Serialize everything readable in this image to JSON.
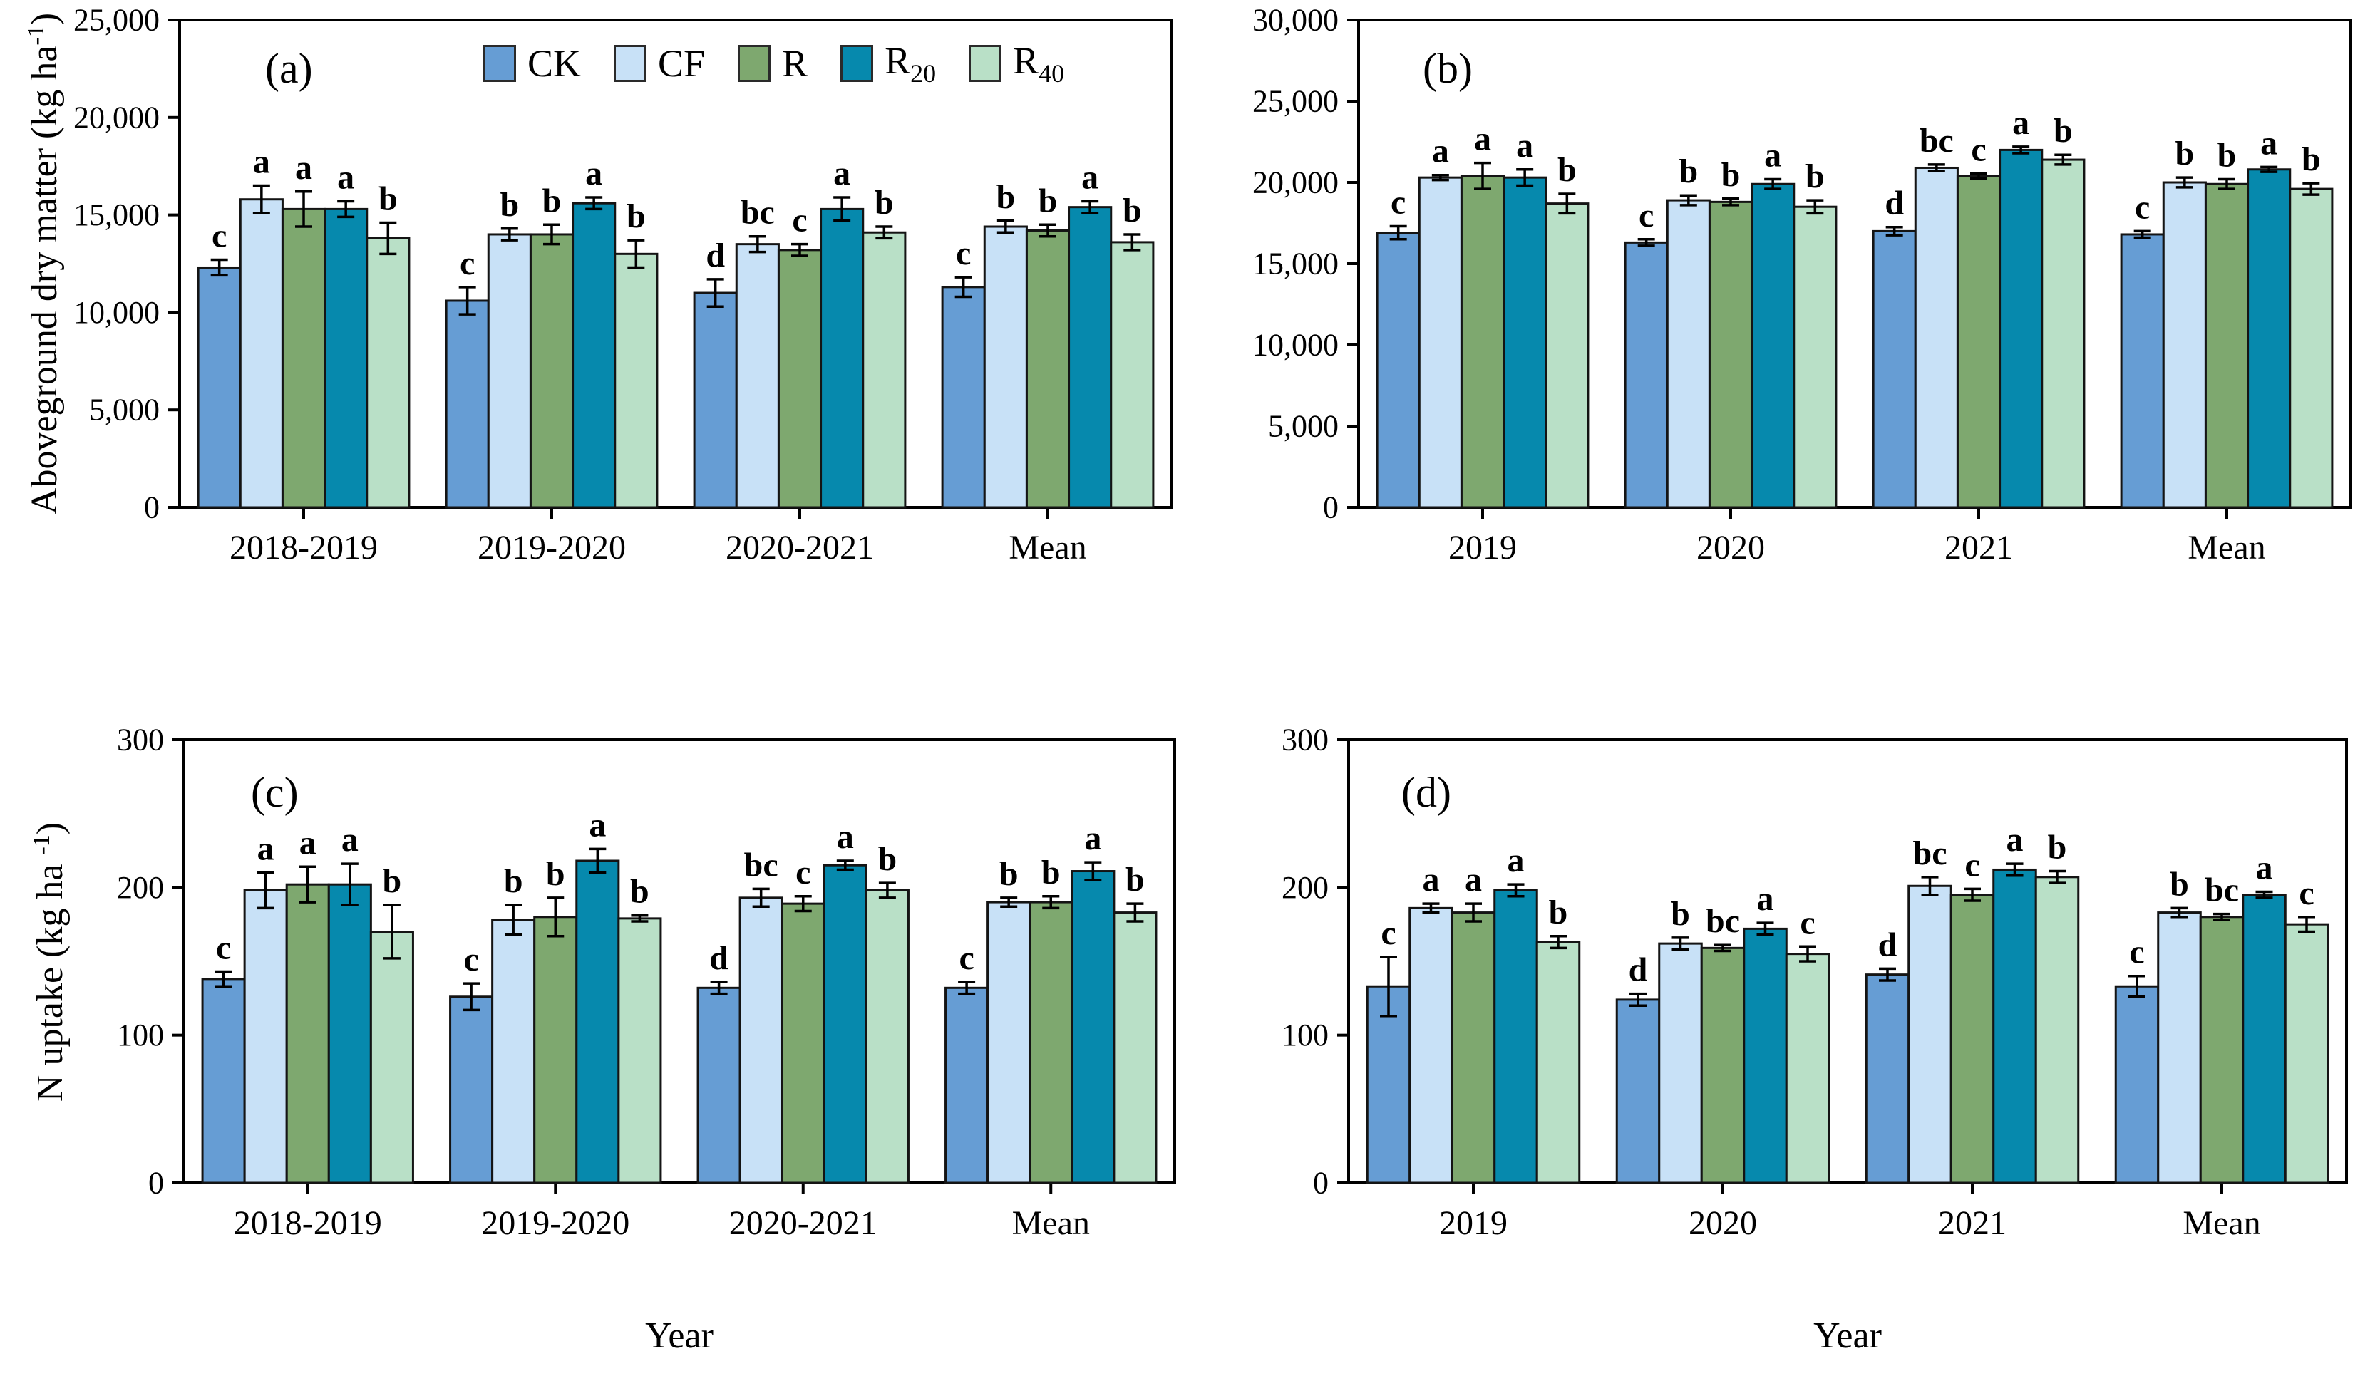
{
  "figure": {
    "legend": [
      {
        "key": "ck",
        "label_base": "CK",
        "label_sub": "",
        "color": "#669dd4"
      },
      {
        "key": "cf",
        "label_base": "CF",
        "label_sub": "",
        "color": "#c8e1f7"
      },
      {
        "key": "r",
        "label_base": "R",
        "label_sub": "",
        "color": "#7ea86f"
      },
      {
        "key": "r20",
        "label_base": "R",
        "label_sub": "20",
        "color": "#0689ad"
      },
      {
        "key": "r40",
        "label_base": "R",
        "label_sub": "40",
        "color": "#b9e0c7"
      }
    ]
  },
  "chart_data": [
    {
      "id": "a",
      "type": "bar",
      "panel_label": "(a)",
      "ylabel": "Aboveground dry matter (kg ha^-1^)",
      "xlabel": "",
      "ylim": [
        0,
        25000
      ],
      "yticks": [
        0,
        5000,
        10000,
        15000,
        20000,
        25000
      ],
      "ytick_labels": [
        "0",
        "5,000",
        "10,000",
        "15,000",
        "20,000",
        "25,000"
      ],
      "categories": [
        "2018-2019",
        "2019-2020",
        "2020-2021",
        "Mean"
      ],
      "legend_position": "top-center-of-panel",
      "grid": false,
      "series": [
        {
          "key": "ck",
          "name": "CK",
          "values": [
            12300,
            10600,
            11000,
            11300
          ],
          "errors": [
            400,
            700,
            700,
            500
          ],
          "letters": [
            "c",
            "c",
            "d",
            "c"
          ]
        },
        {
          "key": "cf",
          "name": "CF",
          "values": [
            15800,
            14000,
            13500,
            14400
          ],
          "errors": [
            700,
            300,
            400,
            300
          ],
          "letters": [
            "a",
            "b",
            "bc",
            "b"
          ]
        },
        {
          "key": "r",
          "name": "R",
          "values": [
            15300,
            14000,
            13200,
            14200
          ],
          "errors": [
            900,
            500,
            300,
            300
          ],
          "letters": [
            "a",
            "b",
            "c",
            "b"
          ]
        },
        {
          "key": "r20",
          "name": "R20",
          "values": [
            15300,
            15600,
            15300,
            15400
          ],
          "errors": [
            400,
            300,
            600,
            300
          ],
          "letters": [
            "a",
            "a",
            "a",
            "a"
          ]
        },
        {
          "key": "r40",
          "name": "R40",
          "values": [
            13800,
            13000,
            14100,
            13600
          ],
          "errors": [
            800,
            700,
            300,
            400
          ],
          "letters": [
            "b",
            "b",
            "b",
            "b"
          ]
        }
      ]
    },
    {
      "id": "b",
      "type": "bar",
      "panel_label": "(b)",
      "ylabel": "",
      "xlabel": "",
      "ylim": [
        0,
        30000
      ],
      "yticks": [
        0,
        5000,
        10000,
        15000,
        20000,
        25000,
        30000
      ],
      "ytick_labels": [
        "0",
        "5,000",
        "10,000",
        "15,000",
        "20,000",
        "25,000",
        "30,000"
      ],
      "categories": [
        "2019",
        "2020",
        "2021",
        "Mean"
      ],
      "grid": false,
      "series": [
        {
          "key": "ck",
          "name": "CK",
          "values": [
            16900,
            16300,
            17000,
            16800
          ],
          "errors": [
            400,
            200,
            250,
            200
          ],
          "letters": [
            "c",
            "c",
            "d",
            "c"
          ]
        },
        {
          "key": "cf",
          "name": "CF",
          "values": [
            20300,
            18900,
            20900,
            20000
          ],
          "errors": [
            150,
            300,
            200,
            300
          ],
          "letters": [
            "a",
            "b",
            "bc",
            "b"
          ]
        },
        {
          "key": "r",
          "name": "R",
          "values": [
            20400,
            18800,
            20400,
            19900
          ],
          "errors": [
            800,
            200,
            150,
            300
          ],
          "letters": [
            "a",
            "b",
            "c",
            "b"
          ]
        },
        {
          "key": "r20",
          "name": "R20",
          "values": [
            20300,
            19900,
            22000,
            20800
          ],
          "errors": [
            500,
            300,
            200,
            150
          ],
          "letters": [
            "a",
            "a",
            "a",
            "a"
          ]
        },
        {
          "key": "r40",
          "name": "R40",
          "values": [
            18700,
            18500,
            21400,
            19600
          ],
          "errors": [
            600,
            400,
            300,
            350
          ],
          "letters": [
            "b",
            "b",
            "b",
            "b"
          ]
        }
      ]
    },
    {
      "id": "c",
      "type": "bar",
      "panel_label": "(c)",
      "ylabel": "N uptake (kg ha ^-1^)",
      "xlabel": "Year",
      "ylim": [
        0,
        300
      ],
      "yticks": [
        0,
        100,
        200,
        300
      ],
      "ytick_labels": [
        "0",
        "100",
        "200",
        "300"
      ],
      "categories": [
        "2018-2019",
        "2019-2020",
        "2020-2021",
        "Mean"
      ],
      "grid": false,
      "series": [
        {
          "key": "ck",
          "name": "CK",
          "values": [
            138,
            126,
            132,
            132
          ],
          "errors": [
            5,
            9,
            4,
            4
          ],
          "letters": [
            "c",
            "c",
            "d",
            "c"
          ]
        },
        {
          "key": "cf",
          "name": "CF",
          "values": [
            198,
            178,
            193,
            190
          ],
          "errors": [
            12,
            10,
            6,
            3
          ],
          "letters": [
            "a",
            "b",
            "bc",
            "b"
          ]
        },
        {
          "key": "r",
          "name": "R",
          "values": [
            202,
            180,
            189,
            190
          ],
          "errors": [
            12,
            13,
            5,
            4
          ],
          "letters": [
            "a",
            "b",
            "c",
            "b"
          ]
        },
        {
          "key": "r20",
          "name": "R20",
          "values": [
            202,
            218,
            215,
            211
          ],
          "errors": [
            14,
            8,
            3,
            6
          ],
          "letters": [
            "a",
            "a",
            "a",
            "a"
          ]
        },
        {
          "key": "r40",
          "name": "R40",
          "values": [
            170,
            179,
            198,
            183
          ],
          "errors": [
            18,
            2,
            5,
            6
          ],
          "letters": [
            "b",
            "b",
            "b",
            "b"
          ]
        }
      ]
    },
    {
      "id": "d",
      "type": "bar",
      "panel_label": "(d)",
      "ylabel": "",
      "xlabel": "Year",
      "ylim": [
        0,
        300
      ],
      "yticks": [
        0,
        100,
        200,
        300
      ],
      "ytick_labels": [
        "0",
        "100",
        "200",
        "300"
      ],
      "categories": [
        "2019",
        "2020",
        "2021",
        "Mean"
      ],
      "grid": false,
      "series": [
        {
          "key": "ck",
          "name": "CK",
          "values": [
            133,
            124,
            141,
            133
          ],
          "errors": [
            20,
            4,
            4,
            7
          ],
          "letters": [
            "c",
            "d",
            "d",
            "c"
          ]
        },
        {
          "key": "cf",
          "name": "CF",
          "values": [
            186,
            162,
            201,
            183
          ],
          "errors": [
            3,
            4,
            6,
            3
          ],
          "letters": [
            "a",
            "b",
            "bc",
            "b"
          ]
        },
        {
          "key": "r",
          "name": "R",
          "values": [
            183,
            159,
            195,
            180
          ],
          "errors": [
            6,
            2,
            4,
            2
          ],
          "letters": [
            "a",
            "bc",
            "c",
            "bc"
          ]
        },
        {
          "key": "r20",
          "name": "R20",
          "values": [
            198,
            172,
            212,
            195
          ],
          "errors": [
            4,
            4,
            4,
            2
          ],
          "letters": [
            "a",
            "a",
            "a",
            "a"
          ]
        },
        {
          "key": "r40",
          "name": "R40",
          "values": [
            163,
            155,
            207,
            175
          ],
          "errors": [
            4,
            5,
            4,
            5
          ],
          "letters": [
            "b",
            "c",
            "b",
            "c"
          ]
        }
      ]
    }
  ]
}
